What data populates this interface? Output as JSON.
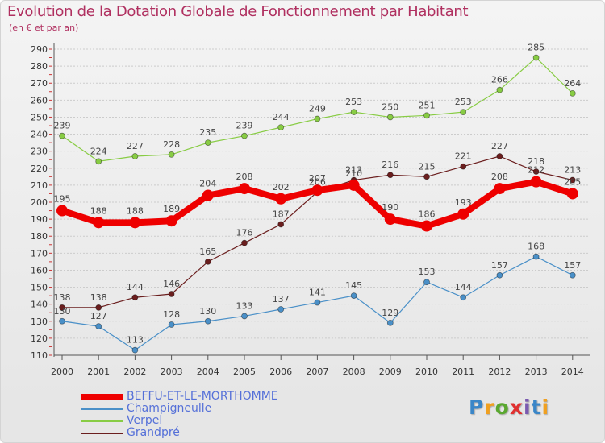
{
  "header": {
    "title": "Evolution de la Dotation Globale de Fonctionnement par Habitant",
    "subtitle": "(en € et par an)"
  },
  "colors": {
    "title": "#b03060",
    "legend_text": "#5570d8",
    "grid": "#cccccc",
    "axis": "#555555"
  },
  "chart_data": {
    "type": "line",
    "title": "Evolution de la Dotation Globale de Fonctionnement par Habitant",
    "subtitle": "(en € et par an)",
    "x": [
      2000,
      2001,
      2002,
      2003,
      2004,
      2005,
      2006,
      2007,
      2008,
      2009,
      2010,
      2011,
      2012,
      2013,
      2014
    ],
    "ylim": [
      110,
      290
    ],
    "yticks": [
      110,
      120,
      130,
      140,
      150,
      160,
      170,
      180,
      190,
      200,
      210,
      220,
      230,
      240,
      250,
      260,
      270,
      280,
      290
    ],
    "grid": true,
    "legend_position": "bottom-left",
    "series": [
      {
        "name": "BEFFU-ET-LE-MORTHOMME",
        "color": "#ee0000",
        "values": [
          195,
          188,
          188,
          189,
          204,
          208,
          202,
          207,
          210,
          190,
          186,
          193,
          208,
          212,
          205
        ]
      },
      {
        "name": "Champigneulle",
        "color": "#4a90c8",
        "values": [
          130,
          127,
          113,
          128,
          130,
          133,
          137,
          141,
          145,
          129,
          153,
          144,
          157,
          168,
          157
        ]
      },
      {
        "name": "Verpel",
        "color": "#88cc44",
        "values": [
          239,
          224,
          227,
          228,
          235,
          239,
          244,
          249,
          253,
          250,
          251,
          253,
          266,
          285,
          264
        ]
      },
      {
        "name": "Grandpré",
        "color": "#6b1e1e",
        "values": [
          138,
          138,
          144,
          146,
          165,
          176,
          187,
          206,
          213,
          216,
          215,
          221,
          227,
          218,
          213
        ]
      }
    ]
  },
  "legend": {
    "items": [
      {
        "label": "BEFFU-ET-LE-MORTHOMME",
        "color": "#ee0000"
      },
      {
        "label": "Champigneulle",
        "color": "#4a90c8"
      },
      {
        "label": "Verpel",
        "color": "#88cc44"
      },
      {
        "label": "Grandpré",
        "color": "#6b1e1e"
      }
    ]
  },
  "logo": {
    "text": "Proxiti",
    "letter_colors": [
      "#3a86c8",
      "#f0a020",
      "#5aa830",
      "#e03030",
      "#7a5ab0",
      "#3a86c8",
      "#f0a020"
    ]
  }
}
